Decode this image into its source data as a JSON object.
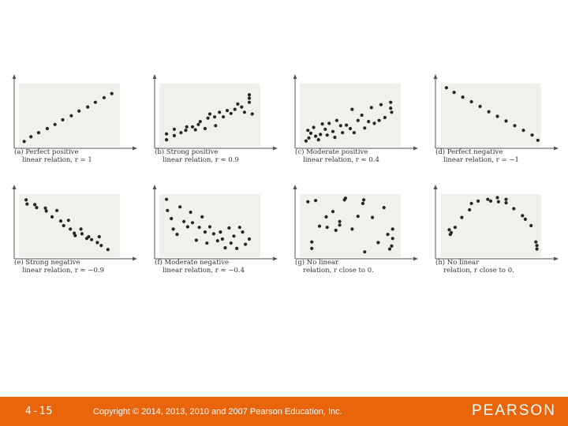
{
  "chart_data": [
    {
      "type": "scatter",
      "caption_line1": "(a) Perfect positive",
      "caption_line2": "linear relation, r = 1",
      "xlim": [
        0,
        10
      ],
      "ylim": [
        0,
        10
      ],
      "points": [
        [
          0.3,
          0.5
        ],
        [
          1,
          1.3
        ],
        [
          1.8,
          2
        ],
        [
          2.7,
          2.7
        ],
        [
          3.5,
          3.4
        ],
        [
          4.3,
          4.2
        ],
        [
          5.2,
          4.9
        ],
        [
          6,
          5.7
        ],
        [
          6.9,
          6.4
        ],
        [
          7.7,
          7.2
        ],
        [
          8.6,
          8
        ],
        [
          9.4,
          8.7
        ]
      ]
    },
    {
      "type": "scatter",
      "caption_line1": "(b) Strong positive",
      "caption_line2": "linear relation, r ≈ 0.9",
      "xlim": [
        0,
        10
      ],
      "ylim": [
        0,
        10
      ],
      "points": [
        [
          0.5,
          0.8
        ],
        [
          0.5,
          1.8
        ],
        [
          1.3,
          1.5
        ],
        [
          1.3,
          2.6
        ],
        [
          2,
          2
        ],
        [
          2.5,
          2.4
        ],
        [
          2.6,
          3
        ],
        [
          3.2,
          3
        ],
        [
          3.5,
          2.5
        ],
        [
          3.8,
          3.4
        ],
        [
          4,
          3.9
        ],
        [
          4.5,
          2.7
        ],
        [
          4.8,
          4.5
        ],
        [
          5,
          5.2
        ],
        [
          5.5,
          4.7
        ],
        [
          5.6,
          3.2
        ],
        [
          6,
          5.5
        ],
        [
          6.4,
          4.7
        ],
        [
          6.8,
          5.8
        ],
        [
          7.2,
          5.3
        ],
        [
          7.6,
          6
        ],
        [
          7.9,
          6.9
        ],
        [
          8.3,
          6.4
        ],
        [
          8.6,
          5.5
        ],
        [
          9.1,
          7.2
        ],
        [
          9.1,
          7.9
        ],
        [
          9.1,
          8.5
        ],
        [
          9.4,
          5.2
        ]
      ]
    },
    {
      "type": "scatter",
      "caption_line1": "(c) Moderate positive",
      "caption_line2": "linear relation, r ≈ 0.4",
      "xlim": [
        0,
        10
      ],
      "ylim": [
        0,
        10
      ],
      "points": [
        [
          0.4,
          0.6
        ],
        [
          0.6,
          2.4
        ],
        [
          0.7,
          1.1
        ],
        [
          0.9,
          1.9
        ],
        [
          1.2,
          2.9
        ],
        [
          1.4,
          1.4
        ],
        [
          1.7,
          0.8
        ],
        [
          1.9,
          1.7
        ],
        [
          2.1,
          3.5
        ],
        [
          2.4,
          2.6
        ],
        [
          2.6,
          1.6
        ],
        [
          2.8,
          3.6
        ],
        [
          3.2,
          2.2
        ],
        [
          3.4,
          1.2
        ],
        [
          3.6,
          4.1
        ],
        [
          4,
          3.2
        ],
        [
          4.2,
          2
        ],
        [
          4.6,
          3.3
        ],
        [
          5,
          2.7
        ],
        [
          5.2,
          6
        ],
        [
          5.4,
          2
        ],
        [
          5.8,
          4.1
        ],
        [
          6.2,
          5
        ],
        [
          6.5,
          2.8
        ],
        [
          6.9,
          3.9
        ],
        [
          7.2,
          6.3
        ],
        [
          7.5,
          3.6
        ],
        [
          8,
          4.1
        ],
        [
          8.2,
          6.8
        ],
        [
          8.6,
          4.6
        ],
        [
          9.2,
          6.2
        ],
        [
          9.2,
          7.2
        ],
        [
          9.3,
          5.5
        ]
      ]
    },
    {
      "type": "scatter",
      "caption_line1": "(d) Perfect negative",
      "caption_line2": "linear relation, r = −1",
      "xlim": [
        0,
        10
      ],
      "ylim": [
        0,
        10
      ],
      "points": [
        [
          0.4,
          9.7
        ],
        [
          1.2,
          8.9
        ],
        [
          2.1,
          8.1
        ],
        [
          3,
          7.3
        ],
        [
          3.9,
          6.5
        ],
        [
          4.8,
          5.6
        ],
        [
          5.7,
          4.8
        ],
        [
          6.6,
          4
        ],
        [
          7.5,
          3.2
        ],
        [
          8.4,
          2.4
        ],
        [
          9.3,
          1.6
        ],
        [
          9.9,
          0.7
        ]
      ]
    },
    {
      "type": "scatter",
      "caption_line1": "(e) Strong negative",
      "caption_line2": "linear relation, r ≈ −0.9",
      "xlim": [
        0,
        10
      ],
      "ylim": [
        0,
        10
      ],
      "points": [
        [
          0.5,
          9.4
        ],
        [
          0.6,
          8.7
        ],
        [
          1.4,
          8.6
        ],
        [
          1.6,
          8.1
        ],
        [
          2.5,
          8
        ],
        [
          2.6,
          7.5
        ],
        [
          3.2,
          6.5
        ],
        [
          3.7,
          7.6
        ],
        [
          4.1,
          5.8
        ],
        [
          4.4,
          5
        ],
        [
          4.9,
          5.9
        ],
        [
          5.1,
          4.4
        ],
        [
          5.5,
          3.7
        ],
        [
          5.6,
          3.3
        ],
        [
          6.2,
          4.4
        ],
        [
          6.3,
          3.6
        ],
        [
          6.8,
          2.8
        ],
        [
          7,
          3.1
        ],
        [
          7.3,
          2.6
        ],
        [
          7.9,
          2.1
        ],
        [
          8.1,
          3.1
        ],
        [
          8.3,
          1.6
        ],
        [
          9,
          0.9
        ]
      ]
    },
    {
      "type": "scatter",
      "caption_line1": "(f) Moderate negative",
      "caption_line2": "linear relation, r ≈ −0.4",
      "xlim": [
        0,
        10
      ],
      "ylim": [
        0,
        10
      ],
      "points": [
        [
          0.5,
          9.5
        ],
        [
          0.6,
          7.6
        ],
        [
          1,
          6.2
        ],
        [
          1.2,
          4.4
        ],
        [
          1.6,
          3.5
        ],
        [
          1.9,
          8.2
        ],
        [
          2.3,
          5.7
        ],
        [
          2.7,
          4.8
        ],
        [
          3,
          7.3
        ],
        [
          3.2,
          5.5
        ],
        [
          3.6,
          2.5
        ],
        [
          3.9,
          4.7
        ],
        [
          4.2,
          6.5
        ],
        [
          4.5,
          3.9
        ],
        [
          4.7,
          2
        ],
        [
          5,
          4.8
        ],
        [
          5.4,
          3.6
        ],
        [
          5.8,
          2.4
        ],
        [
          6.1,
          3.9
        ],
        [
          6.3,
          2.7
        ],
        [
          6.6,
          1.2
        ],
        [
          7,
          4.6
        ],
        [
          7.2,
          2
        ],
        [
          7.5,
          3.2
        ],
        [
          7.8,
          1.1
        ],
        [
          8.1,
          4.7
        ],
        [
          8.4,
          3.9
        ],
        [
          8.7,
          1.8
        ],
        [
          9.1,
          2.7
        ]
      ]
    },
    {
      "type": "scatter",
      "caption_line1": "(g) No linear",
      "caption_line2": "relation, r close to 0.",
      "xlim": [
        0,
        10
      ],
      "ylim": [
        0,
        10
      ],
      "points": [
        [
          0.6,
          9.1
        ],
        [
          1,
          1.1
        ],
        [
          1,
          2.2
        ],
        [
          1.4,
          9.3
        ],
        [
          1.8,
          4.9
        ],
        [
          2.5,
          6.5
        ],
        [
          2.6,
          4.7
        ],
        [
          3.2,
          7.4
        ],
        [
          3.5,
          4.2
        ],
        [
          3.9,
          5.1
        ],
        [
          3.9,
          5.7
        ],
        [
          4.4,
          9.4
        ],
        [
          4.5,
          9.7
        ],
        [
          5.2,
          4.4
        ],
        [
          5.8,
          6.6
        ],
        [
          6.3,
          8.8
        ],
        [
          6.4,
          9.4
        ],
        [
          6.5,
          0.5
        ],
        [
          7.3,
          6.4
        ],
        [
          7.9,
          2.1
        ],
        [
          8.5,
          8.1
        ],
        [
          8.9,
          3.5
        ],
        [
          9.1,
          1
        ],
        [
          9.4,
          2.8
        ],
        [
          9.4,
          4.4
        ],
        [
          9.3,
          1.5
        ]
      ]
    },
    {
      "type": "scatter",
      "caption_line1": "(h) No linear",
      "caption_line2": "relation, r close to 0.",
      "xlim": [
        0,
        10
      ],
      "ylim": [
        0,
        10
      ],
      "points": [
        [
          0.7,
          4.3
        ],
        [
          0.8,
          3.5
        ],
        [
          0.9,
          3.8
        ],
        [
          1.3,
          4.7
        ],
        [
          2,
          6.4
        ],
        [
          2.8,
          7.7
        ],
        [
          3,
          8.8
        ],
        [
          3.7,
          9.2
        ],
        [
          4.7,
          9.5
        ],
        [
          5,
          9.2
        ],
        [
          5.7,
          9.8
        ],
        [
          5.8,
          9.1
        ],
        [
          6.6,
          9.5
        ],
        [
          6.6,
          8.9
        ],
        [
          7.4,
          7.9
        ],
        [
          8.3,
          6.7
        ],
        [
          8.6,
          6.1
        ],
        [
          9.2,
          5
        ],
        [
          9.7,
          2.2
        ],
        [
          9.8,
          1.6
        ],
        [
          9.8,
          1
        ]
      ]
    }
  ],
  "footer": {
    "slide_number": "4-15",
    "copyright": "Copyright © 2014, 2013, 2010 and 2007 Pearson Education, Inc.",
    "logo": "PEARSON",
    "bar_color": "#e8650c"
  },
  "colors": {
    "plot_bg": "#f2f0eb",
    "dot": "#262626",
    "axis": "#555555"
  }
}
